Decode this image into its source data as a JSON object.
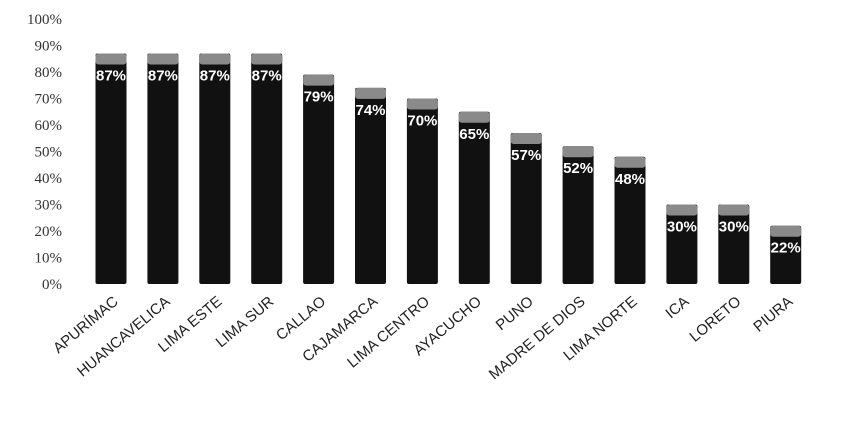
{
  "chart_data": {
    "type": "bar",
    "title": "",
    "xlabel": "",
    "ylabel": "",
    "ylim": [
      0,
      100
    ],
    "yticks": [
      "0%",
      "10%",
      "20%",
      "30%",
      "40%",
      "50%",
      "60%",
      "70%",
      "80%",
      "90%",
      "100%"
    ],
    "grid": false,
    "legend": "none",
    "categories": [
      "APURÍMAC",
      "HUANCAVELICA",
      "LIMA ESTE",
      "LIMA SUR",
      "CALLAO",
      "CAJAMARCA",
      "LIMA CENTRO",
      "AYACUCHO",
      "PUNO",
      "MADRE DE DIOS",
      "LIMA NORTE",
      "ICA",
      "LORETO",
      "PIURA"
    ],
    "values": [
      87,
      87,
      87,
      87,
      79,
      74,
      70,
      65,
      57,
      52,
      48,
      30,
      30,
      22
    ],
    "data_labels": [
      "87%",
      "87%",
      "87%",
      "87%",
      "79%",
      "74%",
      "70%",
      "65%",
      "57%",
      "52%",
      "48%",
      "30%",
      "30%",
      "22%"
    ],
    "colors": {
      "bar": "#111111",
      "bar_cap": "#8a8a8a",
      "label": "#ffffff",
      "axis_text": "#333333"
    }
  }
}
